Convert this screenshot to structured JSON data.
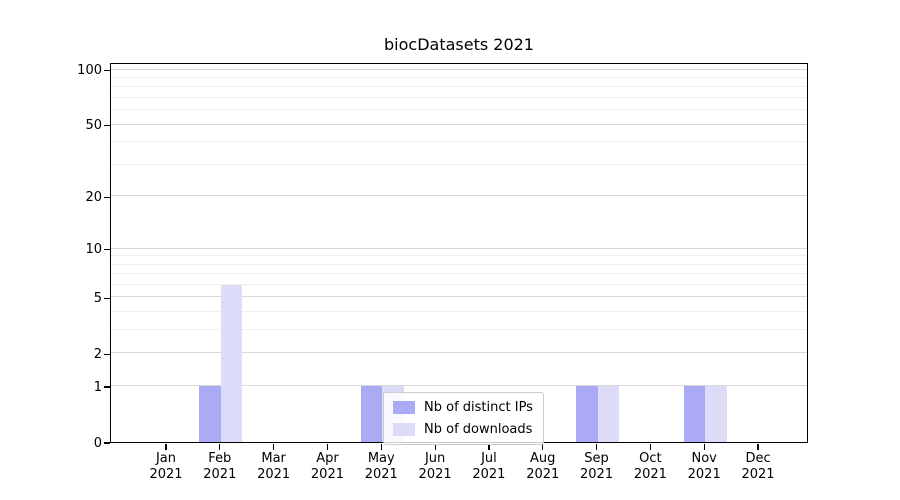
{
  "chart_data": {
    "type": "bar",
    "title": "biocDatasets 2021",
    "categories": [
      "Jan 2021",
      "Feb 2021",
      "Mar 2021",
      "Apr 2021",
      "May 2021",
      "Jun 2021",
      "Jul 2021",
      "Aug 2021",
      "Sep 2021",
      "Oct 2021",
      "Nov 2021",
      "Dec 2021"
    ],
    "series": [
      {
        "name": "Nb of distinct IPs",
        "color": "#ababf5",
        "values": [
          0,
          1,
          0,
          0,
          1,
          0,
          0,
          0,
          1,
          0,
          1,
          0
        ]
      },
      {
        "name": "Nb of downloads",
        "color": "#dcdcf9",
        "values": [
          0,
          6,
          0,
          0,
          1,
          0,
          0,
          0,
          1,
          0,
          1,
          0
        ]
      }
    ],
    "xlabel": "",
    "ylabel": "",
    "y_scale": "log10(1+y)",
    "y_major_ticks": [
      0,
      1,
      2,
      5,
      10,
      20,
      50,
      100
    ],
    "y_minor_gridlines": [
      3,
      4,
      6,
      7,
      8,
      9,
      30,
      40,
      60,
      70,
      80,
      90
    ],
    "ylim": [
      0,
      110
    ],
    "grid": true,
    "legend_position": "lower center inside plot"
  },
  "colors": {
    "bar_distinct_ips": "#ababf5",
    "bar_downloads": "#dcdcf9",
    "grid_major": "#d8d8d8",
    "grid_minor": "#efefef",
    "axis_spine": "#000000",
    "legend_border": "#cccccc"
  }
}
